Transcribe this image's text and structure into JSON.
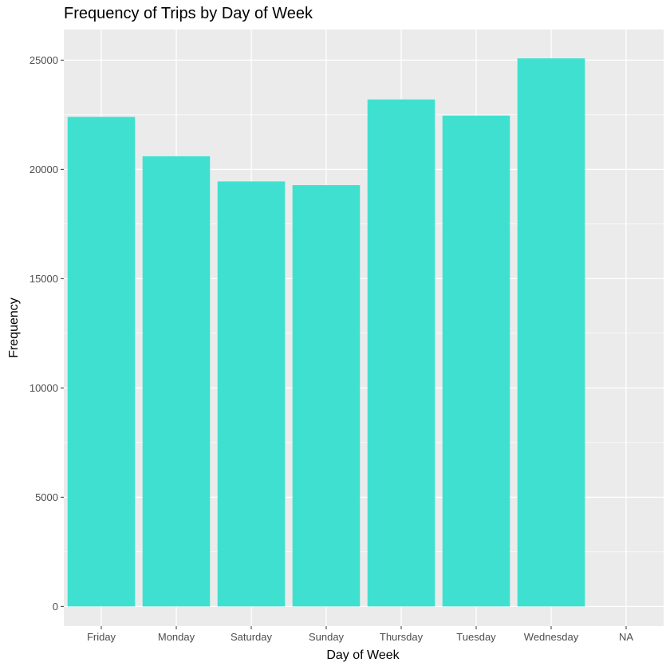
{
  "chart_data": {
    "type": "bar",
    "title": "Frequency of Trips by Day of Week",
    "xlabel": "Day of Week",
    "ylabel": "Frequency",
    "categories": [
      "Friday",
      "Monday",
      "Saturday",
      "Sunday",
      "Thursday",
      "Tuesday",
      "Wednesday",
      "NA"
    ],
    "values": [
      22400,
      20600,
      19450,
      19280,
      23200,
      22460,
      25080,
      0
    ],
    "ylim": [
      -900,
      26400
    ],
    "yticks": [
      0,
      5000,
      10000,
      15000,
      20000,
      25000
    ],
    "ytick_labels": [
      "0",
      "5000",
      "10000",
      "15000",
      "20000",
      "25000"
    ],
    "grid": true,
    "colors": {
      "bar": "#40E0D0",
      "panel": "#EBEBEB",
      "grid": "#FFFFFF"
    }
  }
}
